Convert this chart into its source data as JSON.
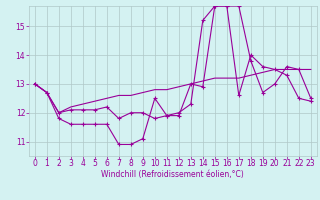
{
  "xlabel": "Windchill (Refroidissement éolien,°C)",
  "bg_color": "#d4f2f2",
  "grid_color": "#b0c8c8",
  "line_color": "#990099",
  "xlim": [
    -0.5,
    23.5
  ],
  "ylim": [
    10.5,
    15.7
  ],
  "yticks": [
    11,
    12,
    13,
    14,
    15
  ],
  "xticks": [
    0,
    1,
    2,
    3,
    4,
    5,
    6,
    7,
    8,
    9,
    10,
    11,
    12,
    13,
    14,
    15,
    16,
    17,
    18,
    19,
    20,
    21,
    22,
    23
  ],
  "series1_x": [
    0,
    1,
    2,
    3,
    4,
    5,
    6,
    7,
    8,
    9,
    10,
    11,
    12,
    13,
    14,
    15,
    16,
    17,
    18,
    19,
    20,
    21,
    22,
    23
  ],
  "series1_y": [
    13.0,
    12.7,
    11.8,
    11.6,
    11.6,
    11.6,
    11.6,
    10.9,
    10.9,
    11.1,
    12.5,
    11.9,
    11.9,
    13.0,
    12.9,
    15.7,
    15.7,
    12.6,
    14.0,
    13.6,
    13.5,
    13.3,
    12.5,
    12.4
  ],
  "series2_x": [
    0,
    1,
    2,
    3,
    4,
    5,
    6,
    7,
    8,
    9,
    10,
    11,
    12,
    13,
    14,
    15,
    16,
    17,
    18,
    19,
    20,
    21,
    22,
    23
  ],
  "series2_y": [
    13.0,
    12.7,
    12.0,
    12.1,
    12.1,
    12.1,
    12.2,
    11.8,
    12.0,
    12.0,
    11.8,
    11.9,
    12.0,
    12.3,
    15.2,
    15.7,
    15.7,
    15.7,
    13.8,
    12.7,
    13.0,
    13.6,
    13.5,
    12.5
  ],
  "series3_x": [
    0,
    1,
    2,
    3,
    4,
    5,
    6,
    7,
    8,
    9,
    10,
    11,
    12,
    13,
    14,
    15,
    16,
    17,
    18,
    19,
    20,
    21,
    22,
    23
  ],
  "series3_y": [
    13.0,
    12.7,
    12.0,
    12.2,
    12.3,
    12.4,
    12.5,
    12.6,
    12.6,
    12.7,
    12.8,
    12.8,
    12.9,
    13.0,
    13.1,
    13.2,
    13.2,
    13.2,
    13.3,
    13.4,
    13.5,
    13.5,
    13.5,
    13.5
  ],
  "xlabel_fontsize": 5.5,
  "tick_fontsize": 5.5
}
